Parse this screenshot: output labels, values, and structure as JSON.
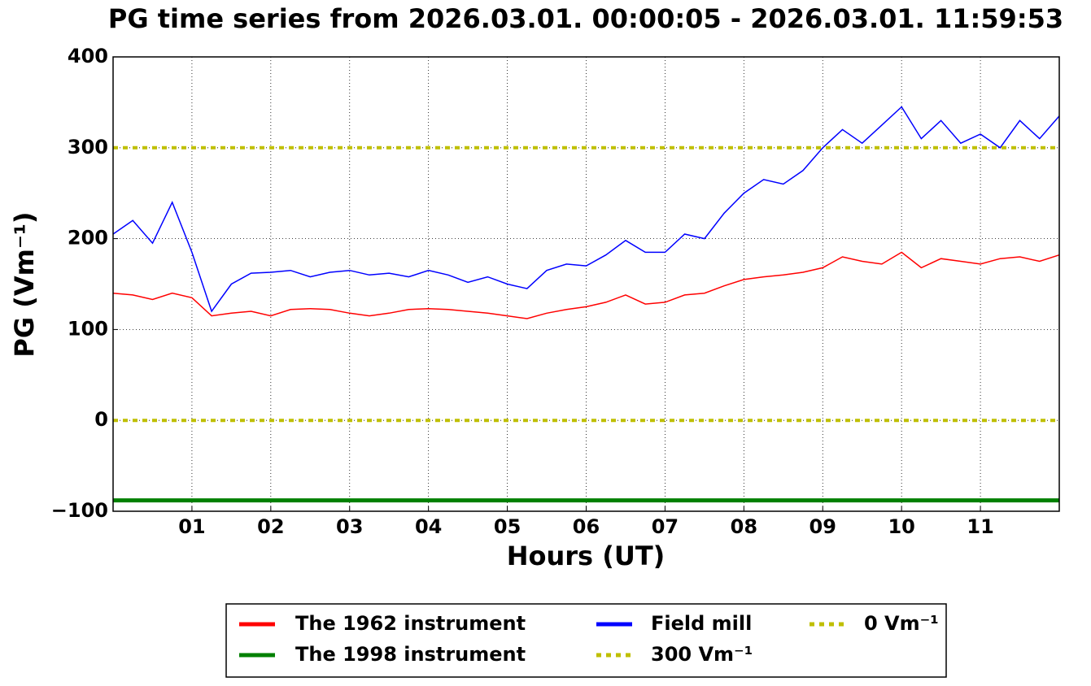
{
  "chart_data": {
    "type": "line",
    "title": "PG time series from 2026.03.01. 00:00:05 - 2026.03.01. 11:59:53",
    "x_label": "Hours (UT)",
    "y_label": "PG (Vm⁻¹)",
    "xlim": [
      0,
      12
    ],
    "ylim": [
      -100,
      400
    ],
    "xticks": [
      {
        "value": 1,
        "label": "01"
      },
      {
        "value": 2,
        "label": "02"
      },
      {
        "value": 3,
        "label": "03"
      },
      {
        "value": 4,
        "label": "04"
      },
      {
        "value": 5,
        "label": "05"
      },
      {
        "value": 6,
        "label": "06"
      },
      {
        "value": 7,
        "label": "07"
      },
      {
        "value": 8,
        "label": "08"
      },
      {
        "value": 9,
        "label": "09"
      },
      {
        "value": 10,
        "label": "10"
      },
      {
        "value": 11,
        "label": "11"
      }
    ],
    "yticks": [
      {
        "value": -100,
        "label": "−100"
      },
      0,
      100,
      200,
      300,
      400
    ],
    "grid": true,
    "legend_position": "bottom",
    "series": [
      {
        "name": "The 1962 instrument",
        "color": "#ff0000",
        "style": "solid",
        "x": [
          0,
          0.25,
          0.5,
          0.75,
          1,
          1.25,
          1.5,
          1.75,
          2,
          2.25,
          2.5,
          2.75,
          3,
          3.25,
          3.5,
          3.75,
          4,
          4.25,
          4.5,
          4.75,
          5,
          5.25,
          5.5,
          5.75,
          6,
          6.25,
          6.5,
          6.75,
          7,
          7.25,
          7.5,
          7.75,
          8,
          8.25,
          8.5,
          8.75,
          9,
          9.25,
          9.5,
          9.75,
          10,
          10.25,
          10.5,
          10.75,
          11,
          11.25,
          11.5,
          11.75,
          12
        ],
        "values": [
          140,
          138,
          133,
          140,
          135,
          115,
          118,
          120,
          115,
          122,
          123,
          122,
          118,
          115,
          118,
          122,
          123,
          122,
          120,
          118,
          115,
          112,
          118,
          122,
          125,
          130,
          138,
          128,
          130,
          138,
          140,
          148,
          155,
          158,
          160,
          163,
          168,
          180,
          175,
          172,
          185,
          168,
          178,
          175,
          172,
          178,
          180,
          175,
          182
        ]
      },
      {
        "name": "The 1998 instrument",
        "color": "#008000",
        "style": "solid",
        "x": [
          0,
          12
        ],
        "values": [
          -88,
          -88
        ]
      },
      {
        "name": "Field mill",
        "color": "#0000ff",
        "style": "solid",
        "x": [
          0,
          0.25,
          0.5,
          0.75,
          1,
          1.25,
          1.5,
          1.75,
          2,
          2.25,
          2.5,
          2.75,
          3,
          3.25,
          3.5,
          3.75,
          4,
          4.25,
          4.5,
          4.75,
          5,
          5.25,
          5.5,
          5.75,
          6,
          6.25,
          6.5,
          6.75,
          7,
          7.25,
          7.5,
          7.75,
          8,
          8.25,
          8.5,
          8.75,
          9,
          9.25,
          9.5,
          9.75,
          10,
          10.25,
          10.5,
          10.75,
          11,
          11.25,
          11.5,
          11.75,
          12
        ],
        "values": [
          205,
          220,
          195,
          240,
          185,
          120,
          150,
          162,
          163,
          165,
          158,
          163,
          165,
          160,
          162,
          158,
          165,
          160,
          152,
          158,
          150,
          145,
          165,
          172,
          170,
          182,
          198,
          185,
          185,
          205,
          200,
          228,
          250,
          265,
          260,
          275,
          300,
          320,
          305,
          325,
          345,
          310,
          330,
          305,
          315,
          300,
          330,
          310,
          335
        ]
      },
      {
        "name": "300 Vm⁻¹",
        "color": "#bfbf00",
        "style": "dashed",
        "x": [
          0,
          12
        ],
        "values": [
          300,
          300
        ]
      },
      {
        "name": "0 Vm⁻¹",
        "color": "#bfbf00",
        "style": "dashed",
        "x": [
          0,
          12
        ],
        "values": [
          0,
          0
        ]
      }
    ]
  }
}
